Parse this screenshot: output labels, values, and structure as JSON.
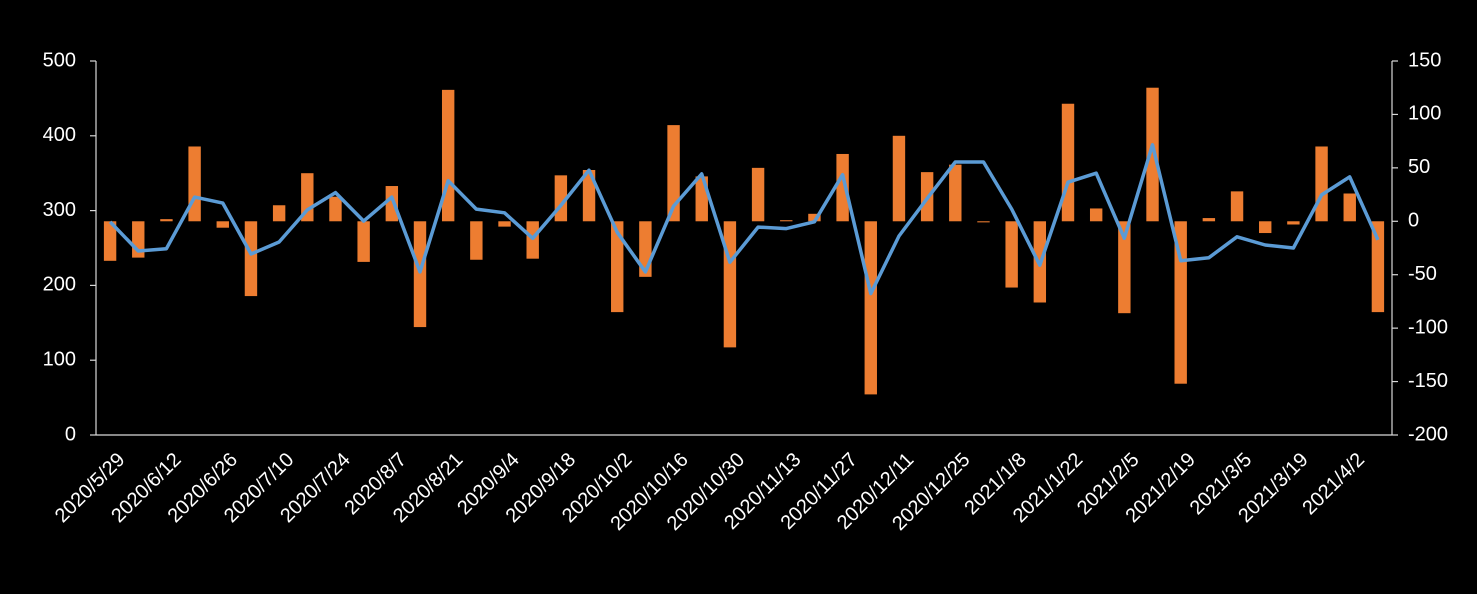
{
  "chart_data": {
    "type": "bar_line",
    "categories": [
      "2020/5/29",
      null,
      "2020/6/12",
      null,
      "2020/6/26",
      null,
      "2020/7/10",
      null,
      "2020/7/24",
      null,
      "2020/8/7",
      null,
      "2020/8/21",
      null,
      "2020/9/4",
      null,
      "2020/9/18",
      null,
      "2020/10/2",
      null,
      "2020/10/16",
      null,
      "2020/10/30",
      null,
      "2020/11/13",
      null,
      "2020/11/27",
      null,
      "2020/12/11",
      null,
      "2020/12/25",
      null,
      "2021/1/8",
      null,
      "2021/1/22",
      null,
      "2021/2/5",
      null,
      "2021/2/19",
      null,
      "2021/3/5",
      null,
      "2021/3/19",
      null,
      "2021/4/2",
      null
    ],
    "series": [
      {
        "type": "bar",
        "axis": "y2",
        "color": "#ed7d31",
        "values": [
          -37,
          -34,
          2,
          70,
          -6,
          -70,
          15,
          45,
          23,
          -38,
          33,
          -99,
          123,
          -36,
          -5,
          -35,
          43,
          48,
          -85,
          -52,
          90,
          42,
          -118,
          50,
          1,
          7,
          63,
          -162,
          80,
          46,
          53,
          -1,
          -62,
          -76,
          110,
          12,
          -86,
          125,
          -152,
          3,
          28,
          -11,
          -3,
          70,
          26,
          -85
        ]
      },
      {
        "type": "line",
        "axis": "y",
        "color": "#5b9bd5",
        "values": [
          285,
          246,
          249,
          318,
          310,
          242,
          258,
          301,
          324,
          286,
          318,
          218,
          340,
          302,
          297,
          263,
          307,
          354,
          271,
          218,
          306,
          349,
          231,
          278,
          276,
          285,
          348,
          189,
          266,
          316,
          365,
          365,
          302,
          227,
          338,
          350,
          263,
          388,
          233,
          237,
          265,
          254,
          250,
          321,
          345,
          261
        ]
      }
    ],
    "ylim": [
      0,
      500
    ],
    "yticks": [
      0,
      100,
      200,
      300,
      400,
      500
    ],
    "y2lim": [
      -200,
      150
    ],
    "y2ticks": [
      -200,
      -150,
      -100,
      -50,
      0,
      50,
      100,
      150
    ],
    "grid": false
  }
}
